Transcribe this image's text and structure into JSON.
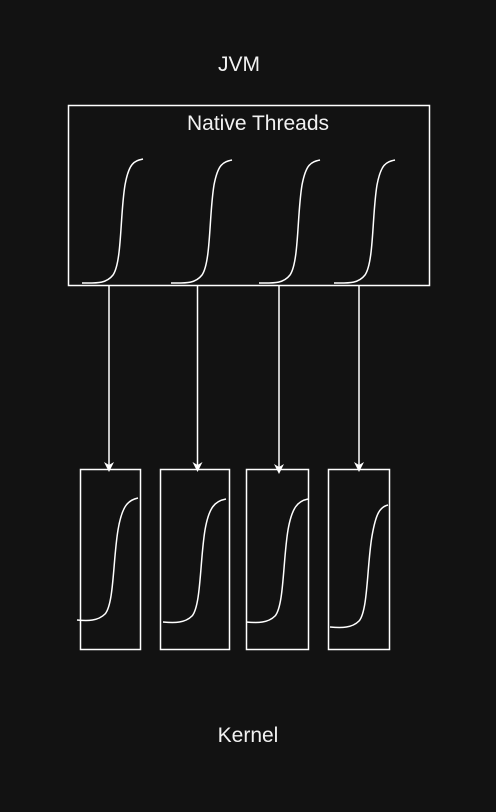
{
  "diagram": {
    "top_label": "JVM",
    "native_box_label": "Native Threads",
    "bottom_label": "Kernel",
    "colors": {
      "background": "#121212",
      "stroke": "#ffffff",
      "text": "#f2f2f2"
    }
  }
}
